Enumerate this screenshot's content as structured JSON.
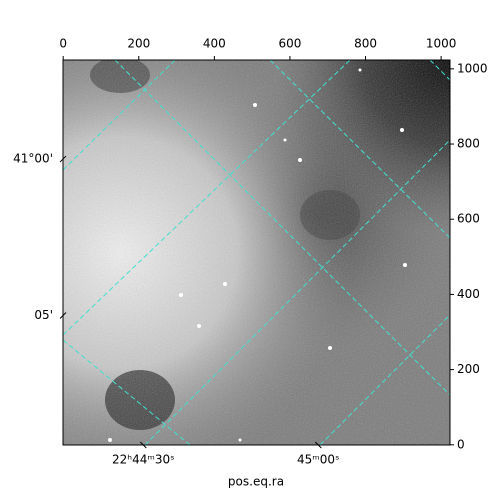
{
  "chart_data": {
    "type": "image",
    "xlabel": "pos.eq.ra",
    "xlim": [
      -0.5,
      1023.5
    ],
    "ylim": [
      -0.5,
      1023.5
    ],
    "xticks": [
      0,
      200,
      400,
      600,
      800,
      1000
    ],
    "yticks": [
      0,
      200,
      400,
      600,
      800,
      1000
    ],
    "ra_ticks": [
      {
        "value": 212,
        "label": "22ʰ44ᵐ30ˢ"
      },
      {
        "value": 675,
        "label": "45ᵐ00ˢ"
      }
    ],
    "dec_ticks": [
      {
        "value": 760,
        "label": "41°00'"
      },
      {
        "value": 344,
        "label": "05'"
      }
    ],
    "grid_color": "#40e0d0"
  }
}
